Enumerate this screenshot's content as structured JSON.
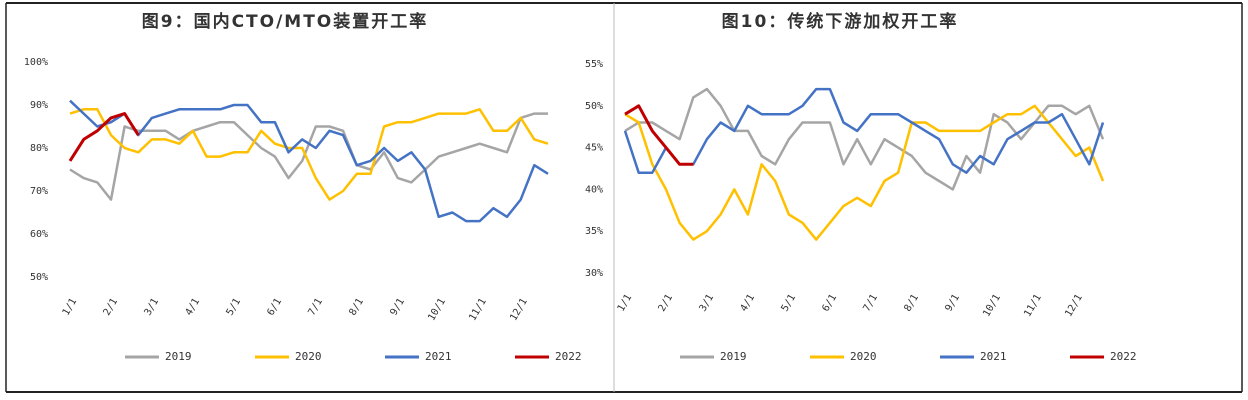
{
  "chart_data": [
    {
      "type": "line",
      "title": "图9：国内CTO/MTO装置开工率",
      "categories": [
        "1/1",
        null,
        null,
        "2/1",
        null,
        null,
        "3/1",
        null,
        null,
        "4/1",
        null,
        null,
        "5/1",
        null,
        null,
        "6/1",
        null,
        null,
        "7/1",
        null,
        null,
        "8/1",
        null,
        null,
        "9/1",
        null,
        null,
        "10/1",
        null,
        null,
        "11/1",
        null,
        null,
        "12/1",
        null,
        null
      ],
      "series": [
        {
          "name": "2019",
          "color": "#a5a5a5",
          "values": [
            75,
            73,
            72,
            68,
            85,
            84,
            84,
            84,
            82,
            84,
            85,
            86,
            86,
            83,
            80,
            78,
            73,
            77,
            85,
            85,
            84,
            76,
            75,
            79,
            73,
            72,
            75,
            78,
            79,
            80,
            81,
            80,
            79,
            87,
            88,
            88
          ]
        },
        {
          "name": "2020",
          "color": "#ffc000",
          "values": [
            88,
            89,
            89,
            83,
            80,
            79,
            82,
            82,
            81,
            84,
            78,
            78,
            79,
            79,
            84,
            81,
            80,
            80,
            73,
            68,
            70,
            74,
            74,
            85,
            86,
            86,
            87,
            88,
            88,
            88,
            89,
            84,
            84,
            87,
            82,
            81
          ]
        },
        {
          "name": "2021",
          "color": "#4472c4",
          "values": [
            91,
            88,
            85,
            86,
            88,
            83,
            87,
            88,
            89,
            89,
            89,
            89,
            90,
            90,
            86,
            86,
            79,
            82,
            80,
            84,
            83,
            76,
            77,
            80,
            77,
            79,
            75,
            64,
            65,
            63,
            63,
            66,
            64,
            68,
            76,
            74
          ]
        },
        {
          "name": "2022",
          "color": "#c00000",
          "values": [
            77,
            82,
            84,
            87,
            88,
            83,
            null,
            null,
            null,
            null,
            null,
            null,
            null,
            null,
            null,
            null,
            null,
            null,
            null,
            null,
            null,
            null,
            null,
            null,
            null,
            null,
            null,
            null,
            null,
            null,
            null,
            null,
            null,
            null,
            null,
            null
          ]
        }
      ],
      "ylim": [
        50,
        100
      ],
      "yticks": [
        {
          "value": 50,
          "label": "50%"
        },
        {
          "value": 60,
          "label": "60%"
        },
        {
          "value": 70,
          "label": "70%"
        },
        {
          "value": 80,
          "label": "80%"
        },
        {
          "value": 90,
          "label": "90%"
        },
        {
          "value": 100,
          "label": "100%"
        }
      ],
      "legend": "bottom"
    },
    {
      "type": "line",
      "title": "图10：传统下游加权开工率",
      "categories": [
        "1/1",
        null,
        null,
        "2/1",
        null,
        null,
        "3/1",
        null,
        null,
        "4/1",
        null,
        null,
        "5/1",
        null,
        null,
        "6/1",
        null,
        null,
        "7/1",
        null,
        null,
        "8/1",
        null,
        null,
        "9/1",
        null,
        null,
        "10/1",
        null,
        null,
        "11/1",
        null,
        null,
        "12/1",
        null,
        null
      ],
      "series": [
        {
          "name": "2019",
          "color": "#a5a5a5",
          "values": [
            47,
            48,
            48,
            47,
            46,
            51,
            52,
            50,
            47,
            47,
            44,
            43,
            46,
            48,
            48,
            48,
            43,
            46,
            43,
            46,
            45,
            44,
            42,
            41,
            40,
            44,
            42,
            49,
            48,
            46,
            48,
            50,
            50,
            49,
            50,
            46
          ]
        },
        {
          "name": "2020",
          "color": "#ffc000",
          "values": [
            49,
            48,
            43,
            40,
            36,
            34,
            35,
            37,
            40,
            37,
            43,
            41,
            37,
            36,
            34,
            36,
            38,
            39,
            38,
            41,
            42,
            48,
            48,
            47,
            47,
            47,
            47,
            48,
            49,
            49,
            50,
            48,
            46,
            44,
            45,
            41
          ]
        },
        {
          "name": "2021",
          "color": "#4472c4",
          "values": [
            47,
            42,
            42,
            45,
            43,
            43,
            46,
            48,
            47,
            50,
            49,
            49,
            49,
            50,
            52,
            52,
            48,
            47,
            49,
            49,
            49,
            48,
            47,
            46,
            43,
            42,
            44,
            43,
            46,
            47,
            48,
            48,
            49,
            46,
            43,
            48
          ]
        },
        {
          "name": "2022",
          "color": "#c00000",
          "values": [
            49,
            50,
            47,
            45,
            43,
            43,
            null,
            null,
            null,
            null,
            null,
            null,
            null,
            null,
            null,
            null,
            null,
            null,
            null,
            null,
            null,
            null,
            null,
            null,
            null,
            null,
            null,
            null,
            null,
            null,
            null,
            null,
            null,
            null,
            null,
            null
          ]
        }
      ],
      "ylim": [
        30,
        55
      ],
      "yticks": [
        {
          "value": 30,
          "label": "30%"
        },
        {
          "value": 35,
          "label": "35%"
        },
        {
          "value": 40,
          "label": "40%"
        },
        {
          "value": 45,
          "label": "45%"
        },
        {
          "value": 50,
          "label": "50%"
        },
        {
          "value": 55,
          "label": "55%"
        }
      ],
      "legend": "bottom"
    }
  ]
}
